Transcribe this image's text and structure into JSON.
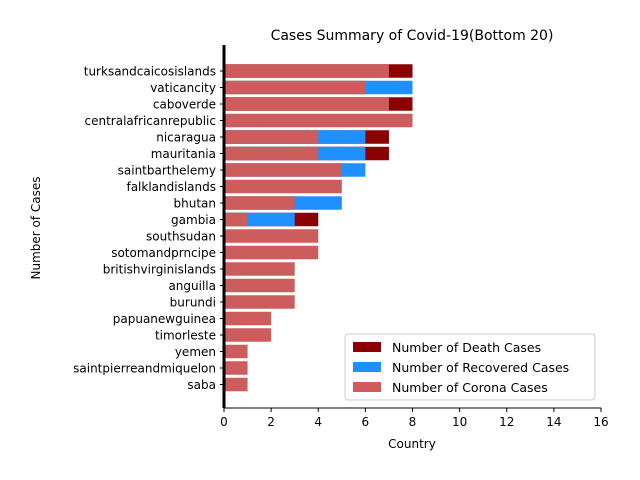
{
  "chart_data": {
    "type": "bar",
    "orientation": "horizontal",
    "title": "Cases Summary of Covid-19(Bottom 20)",
    "xlabel": "Country",
    "ylabel": "Number of Cases",
    "xlim": [
      0,
      16
    ],
    "xticks": [
      0,
      2,
      4,
      6,
      8,
      10,
      12,
      14,
      16
    ],
    "grid": false,
    "legend_position": "lower-right",
    "categories": [
      "turksandcaicosislands",
      "vaticancity",
      "caboverde",
      "centralafricanrepublic",
      "nicaragua",
      "mauritania",
      "saintbarthelemy",
      "falklandislands",
      "bhutan",
      "gambia",
      "southsudan",
      "sotomandprncipe",
      "britishvirginislands",
      "anguilla",
      "burundi",
      "papuanewguinea",
      "timorleste",
      "yemen",
      "saintpierreandmiquelon",
      "saba"
    ],
    "series": [
      {
        "name": "Number of Death Cases",
        "color": "#8b0000",
        "values": [
          8,
          0,
          8,
          0,
          7,
          7,
          0,
          0,
          0,
          4,
          0,
          0,
          0,
          0,
          0,
          0,
          0,
          0,
          0,
          0
        ]
      },
      {
        "name": "Number of Recovered Cases",
        "color": "#1e90ff",
        "values": [
          0,
          8,
          0,
          0,
          6,
          6,
          6,
          0,
          5,
          3,
          0,
          0,
          0,
          0,
          0,
          0,
          0,
          0,
          0,
          0
        ]
      },
      {
        "name": "Number of Corona Cases",
        "color": "#cd5c5c",
        "values": [
          7,
          6,
          7,
          8,
          4,
          4,
          5,
          5,
          3,
          1,
          4,
          4,
          3,
          3,
          3,
          2,
          2,
          1,
          1,
          1
        ]
      }
    ]
  }
}
